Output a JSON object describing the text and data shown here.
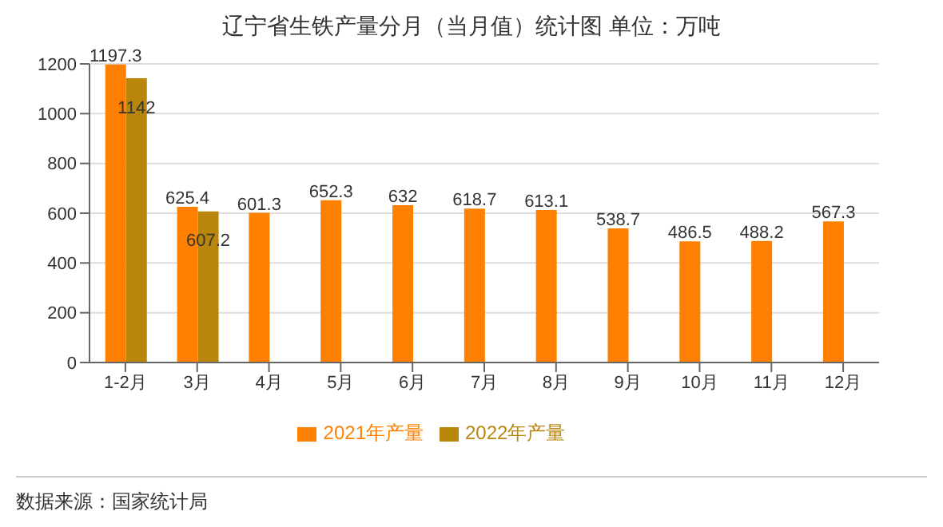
{
  "chart_data": {
    "type": "bar",
    "title": "辽宁省生铁产量分月（当月值）统计图 单位：万吨",
    "categories": [
      "1-2月",
      "3月",
      "4月",
      "5月",
      "6月",
      "7月",
      "8月",
      "9月",
      "10月",
      "11月",
      "12月"
    ],
    "series": [
      {
        "name": "2021年产量",
        "color": "#ff8000",
        "values": [
          1197.3,
          625.4,
          601.3,
          652.3,
          632,
          618.7,
          613.1,
          538.7,
          486.5,
          488.2,
          567.3
        ]
      },
      {
        "name": "2022年产量",
        "color": "#b8860b",
        "values": [
          1142,
          607.2,
          null,
          null,
          null,
          null,
          null,
          null,
          null,
          null,
          null
        ]
      }
    ],
    "ylim": [
      0,
      1200
    ],
    "yticks": [
      0,
      200,
      400,
      600,
      800,
      1000,
      1200
    ],
    "grid": "y",
    "legend": "bottom",
    "data_labels": true,
    "annotations": [
      "数据来源：国家统计局"
    ]
  }
}
